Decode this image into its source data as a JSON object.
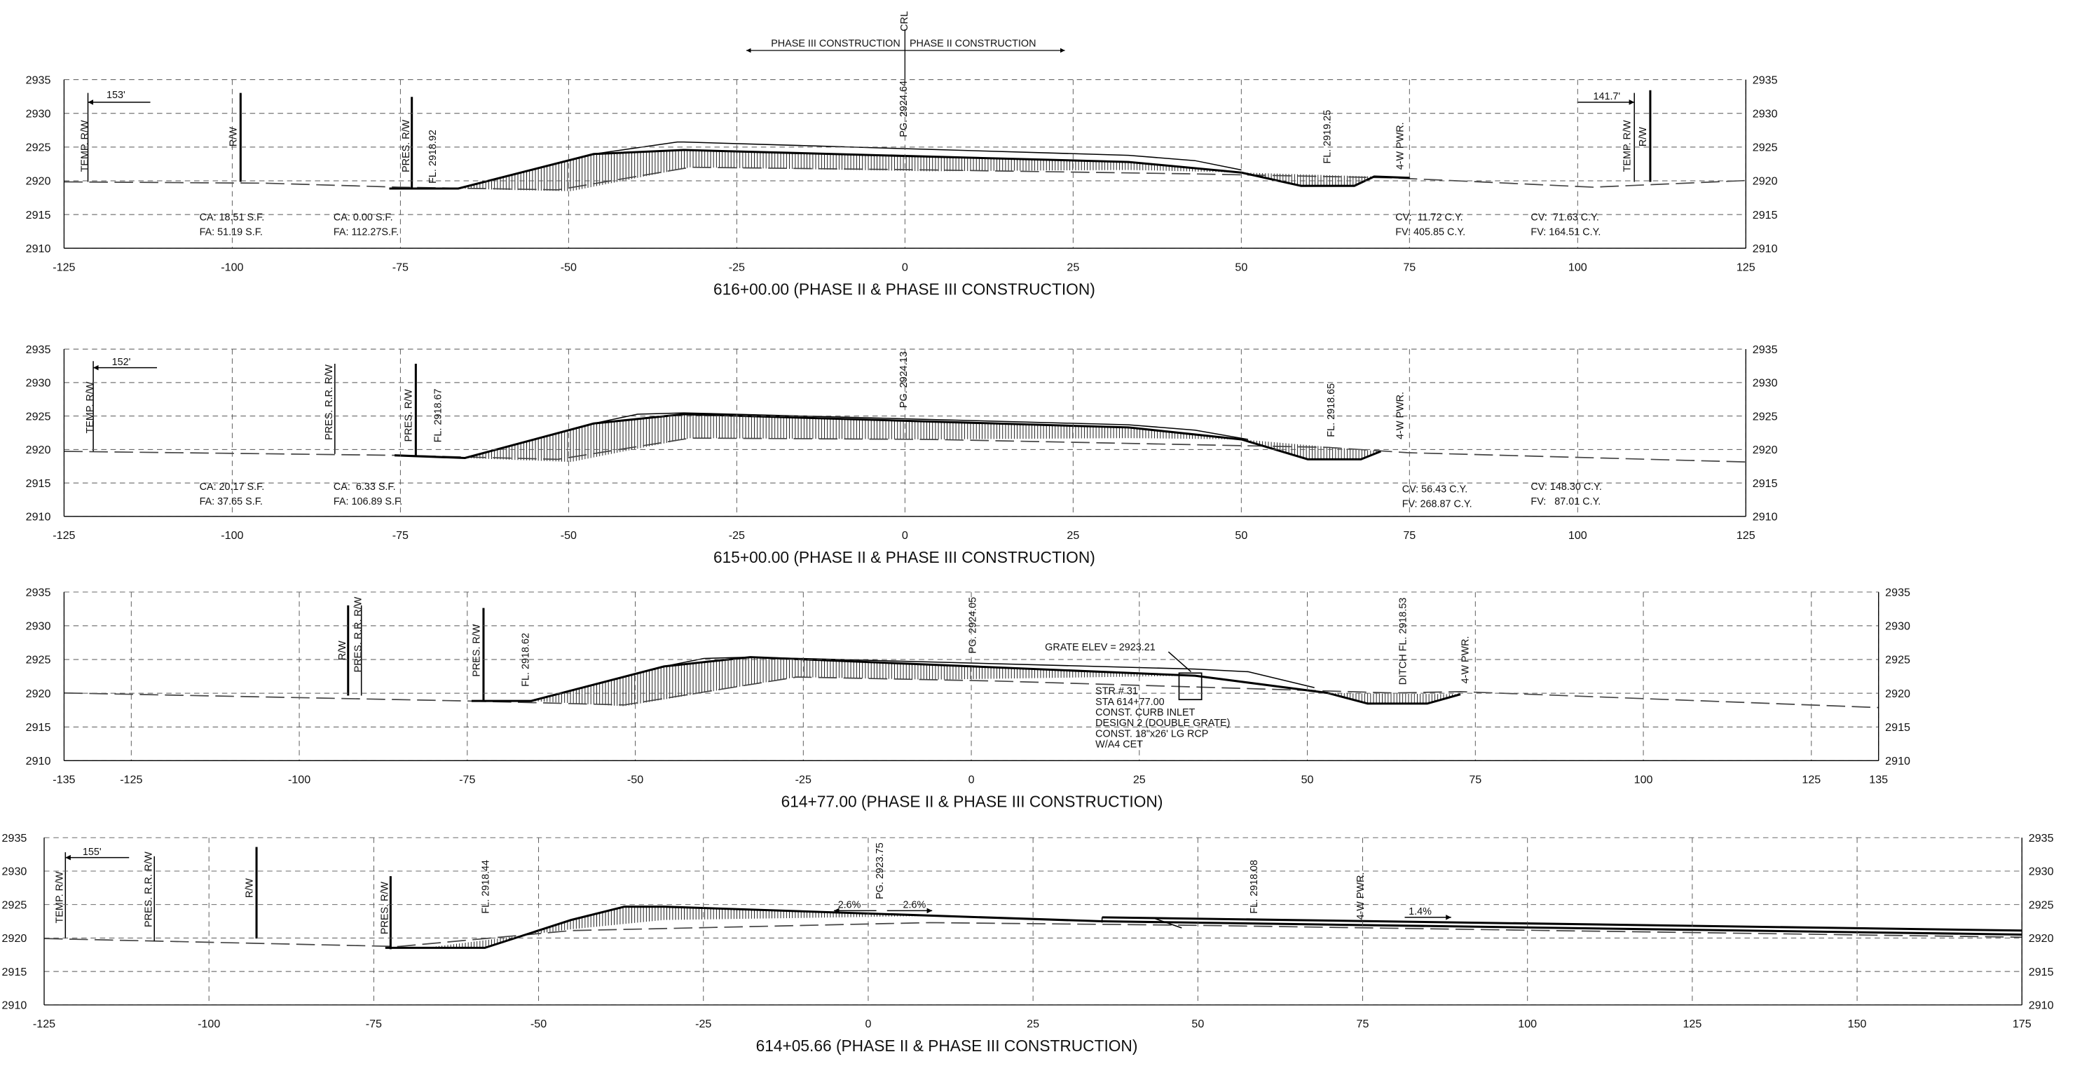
{
  "header": {
    "crl": "CRL",
    "phase_left": "PHASE III CONSTRUCTION",
    "phase_right": "PHASE II CONSTRUCTION"
  },
  "sections": [
    {
      "title": "616+00.00 (PHASE II & PHASE III CONSTRUCTION)",
      "xlim": [
        -125,
        125
      ],
      "xticks": [
        -125,
        -100,
        -75,
        -50,
        -25,
        0,
        25,
        50,
        75,
        100,
        125
      ],
      "ylim": [
        2910,
        2935
      ],
      "yticks": [
        2910,
        2915,
        2920,
        2925,
        2930,
        2935
      ],
      "rotated_labels": [
        "TEMP. R/W",
        "R/W",
        "PRES. R/W",
        "FL. 2918.92",
        "PG. 2924.64",
        "FL. 2919.25",
        "4-W PWR.",
        "TEMP. R/W",
        "R/W"
      ],
      "labels": [
        "153'",
        "141.7'",
        "CA: 18.51 S.F.",
        "FA: 51.19 S.F.",
        "CA: 0.00 S.F.",
        "FA: 112.27S.F.",
        "CV:  11.72 C.Y.",
        "FV: 405.85 C.Y.",
        "CV:  71.63 C.Y.",
        "FV: 164.51 C.Y."
      ]
    },
    {
      "title": "615+00.00 (PHASE II & PHASE III CONSTRUCTION)",
      "xlim": [
        -125,
        125
      ],
      "xticks": [
        -125,
        -100,
        -75,
        -50,
        -25,
        0,
        25,
        50,
        75,
        100,
        125
      ],
      "ylim": [
        2910,
        2935
      ],
      "yticks": [
        2910,
        2915,
        2920,
        2925,
        2930,
        2935
      ],
      "rotated_labels": [
        "TEMP. R/W",
        "PRES. R.R. R/W",
        "PRES. R/W",
        "FL. 2918.67",
        "PG. 2924.13",
        "FL. 2918.65",
        "4-W PWR."
      ],
      "labels": [
        "152'",
        "CA: 20.17 S.F.",
        "FA: 37.65 S.F.",
        "CA:  6.33 S.F.",
        "FA: 106.89 S.F.",
        "CV: 56.43 C.Y.",
        "FV: 268.87 C.Y.",
        "CV: 148.30 C.Y.",
        "FV:   87.01 C.Y."
      ]
    },
    {
      "title": "614+77.00 (PHASE II & PHASE III CONSTRUCTION)",
      "xlim": [
        -135,
        135
      ],
      "xticks": [
        -135,
        -125,
        -100,
        -75,
        -50,
        -25,
        0,
        25,
        50,
        75,
        100,
        125,
        135
      ],
      "ylim": [
        2910,
        2935
      ],
      "yticks": [
        2910,
        2915,
        2920,
        2925,
        2930,
        2935
      ],
      "rotated_labels": [
        "R/W",
        "PRES. R.R. R/W",
        "PRES. R/W",
        "FL. 2918.62",
        "PG. 2924.05",
        "DITCH FL. 2918.53",
        "4-W PWR."
      ],
      "labels": [
        "GRATE ELEV = 2923.21",
        "STR # 31",
        "STA 614+77.00",
        "CONST. CURB INLET",
        "DESIGN 2 (DOUBLE GRATE)",
        "CONST. 18\"x26' LG RCP",
        "W/A4 CET"
      ]
    },
    {
      "title": "614+05.66 (PHASE II & PHASE III CONSTRUCTION)",
      "xlim": [
        -125,
        175
      ],
      "xticks": [
        -125,
        -100,
        -75,
        -50,
        -25,
        0,
        25,
        50,
        75,
        100,
        125,
        150,
        175
      ],
      "ylim": [
        2910,
        2935
      ],
      "yticks": [
        2910,
        2915,
        2920,
        2925,
        2930,
        2935
      ],
      "rotated_labels": [
        "TEMP. R/W",
        "PRES. R.R. R/W",
        "R/W",
        "PRES. R/W",
        "FL. 2918.44",
        "PG. 2923.75",
        "FL. 2918.08",
        "4-W PWR."
      ],
      "labels": [
        "155'",
        "2.6%",
        "2.6%",
        "1.4%"
      ]
    }
  ]
}
